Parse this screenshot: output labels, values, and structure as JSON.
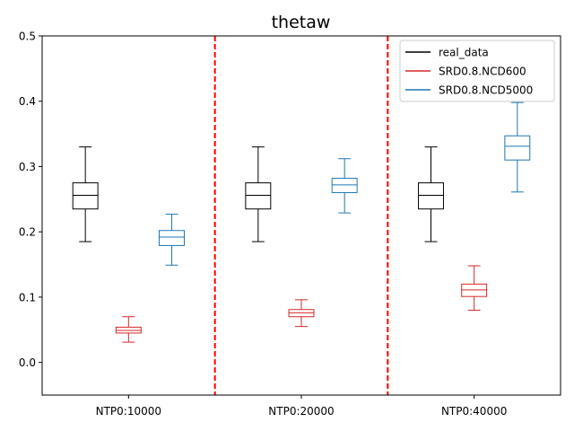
{
  "chart_data": {
    "type": "boxplot",
    "title": "thetaw",
    "xlabel": "",
    "ylabel": "",
    "ylim": [
      -0.05,
      0.5
    ],
    "yticks": [
      0.0,
      0.1,
      0.2,
      0.3,
      0.4,
      0.5
    ],
    "ytick_labels": [
      "0.0",
      "0.1",
      "0.2",
      "0.3",
      "0.4",
      "0.5"
    ],
    "categories": [
      "NTP0:10000",
      "NTP0:20000",
      "NTP0:40000"
    ],
    "separators": "red dashed vertical lines between groups",
    "legend_position": "top-right",
    "series": [
      {
        "name": "real_data",
        "color": "#000000",
        "boxes": [
          {
            "whislo": 0.185,
            "q1": 0.235,
            "med": 0.256,
            "q3": 0.275,
            "whishi": 0.33
          },
          {
            "whislo": 0.185,
            "q1": 0.235,
            "med": 0.256,
            "q3": 0.275,
            "whishi": 0.33
          },
          {
            "whislo": 0.185,
            "q1": 0.235,
            "med": 0.256,
            "q3": 0.275,
            "whishi": 0.33
          }
        ]
      },
      {
        "name": "SRD0.8.NCD600",
        "color": "#d62728",
        "boxes": [
          {
            "whislo": 0.031,
            "q1": 0.045,
            "med": 0.049,
            "q3": 0.054,
            "whishi": 0.07
          },
          {
            "whislo": 0.055,
            "q1": 0.07,
            "med": 0.076,
            "q3": 0.081,
            "whishi": 0.096
          },
          {
            "whislo": 0.08,
            "q1": 0.101,
            "med": 0.111,
            "q3": 0.12,
            "whishi": 0.148
          }
        ]
      },
      {
        "name": "SRD0.8.NCD5000",
        "color": "#1f77b4",
        "boxes": [
          {
            "whislo": 0.149,
            "q1": 0.179,
            "med": 0.192,
            "q3": 0.202,
            "whishi": 0.227
          },
          {
            "whislo": 0.229,
            "q1": 0.26,
            "med": 0.272,
            "q3": 0.282,
            "whishi": 0.312
          },
          {
            "whislo": 0.261,
            "q1": 0.31,
            "med": 0.331,
            "q3": 0.347,
            "whishi": 0.398
          }
        ]
      }
    ]
  }
}
